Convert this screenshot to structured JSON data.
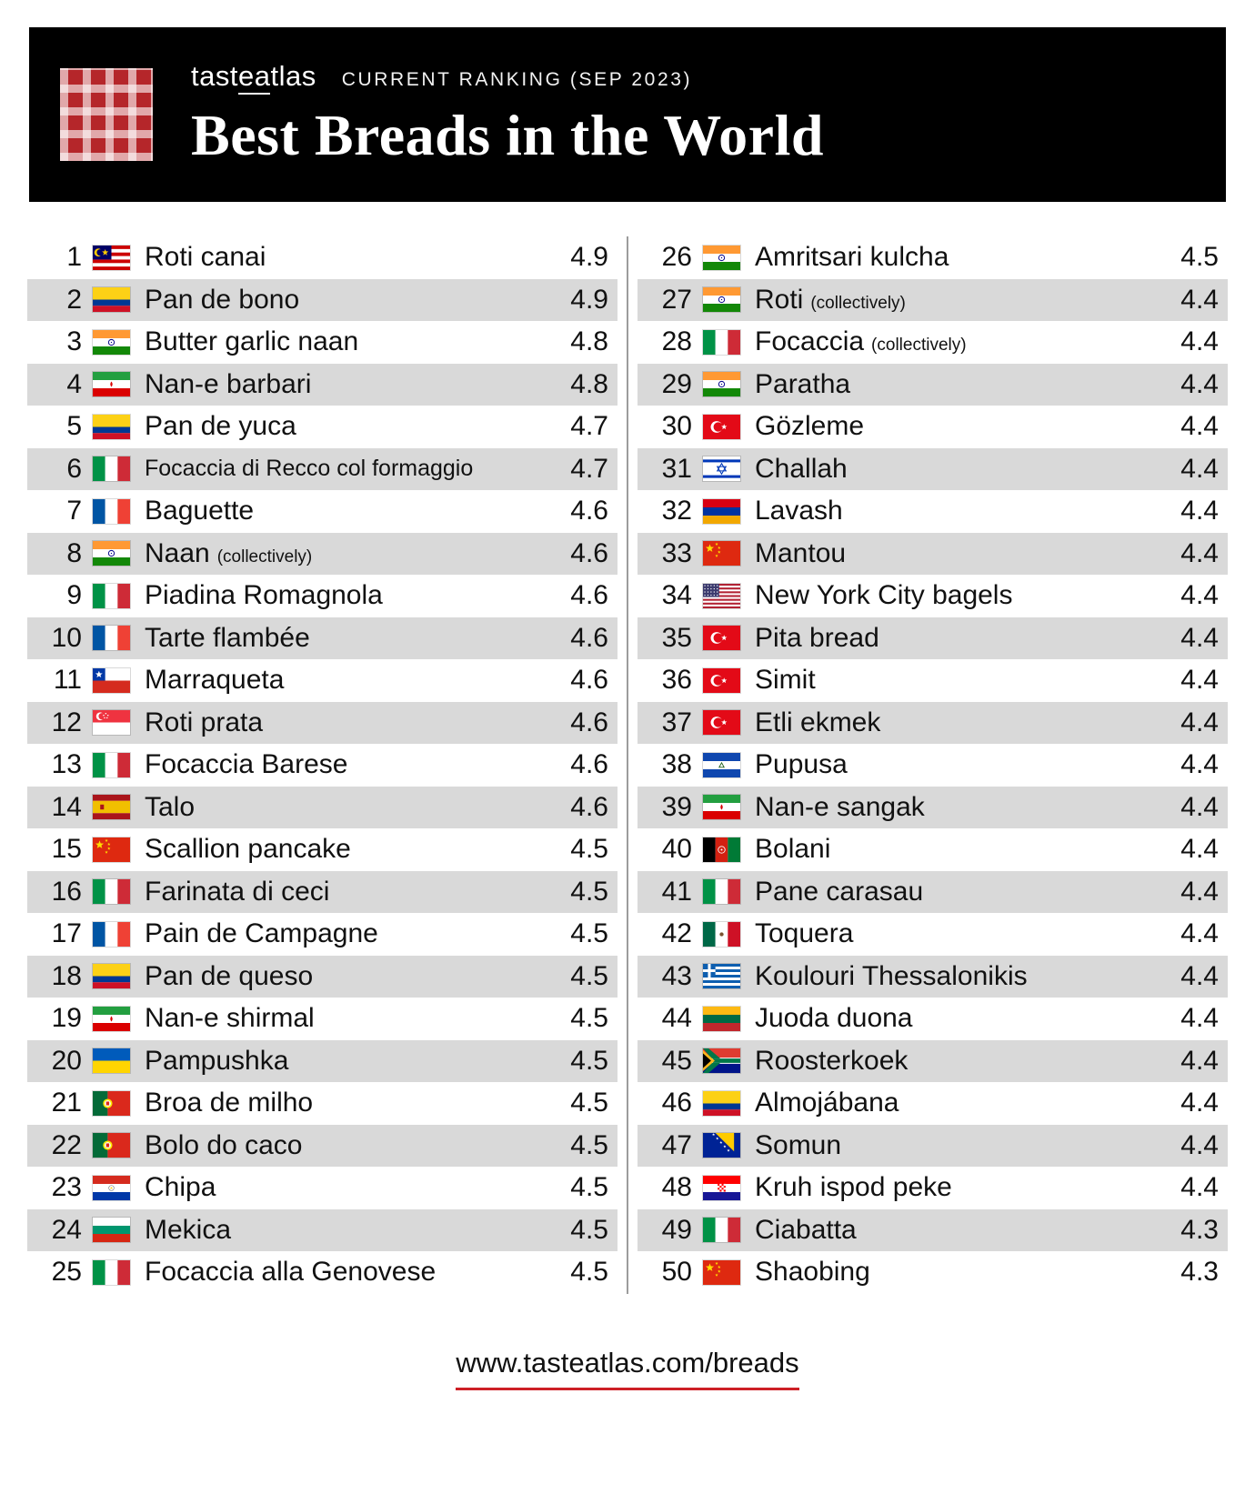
{
  "header": {
    "logo_pre": "tast",
    "logo_mid": "ea",
    "logo_post": "tlas",
    "ranking_label": "CURRENT RANKING (SEP 2023)",
    "title": "Best Breads in the World"
  },
  "footer": {
    "url": "www.tasteatlas.com/breads"
  },
  "colors": {
    "header_bg": "#000000",
    "row_alt_bg": "#d9d9d9",
    "accent_red": "#cd2026",
    "divider": "#9c9c9c"
  },
  "chart_data": {
    "type": "table",
    "title": "Best Breads in the World",
    "subtitle": "tasteatlas CURRENT RANKING (SEP 2023)",
    "columns": [
      "rank",
      "country",
      "bread",
      "rating"
    ],
    "rows": [
      {
        "rank": 1,
        "country": "Malaysia",
        "flag": "malaysia",
        "name": "Roti canai",
        "note": "",
        "rating": "4.9"
      },
      {
        "rank": 2,
        "country": "Colombia",
        "flag": "colombia",
        "name": "Pan de bono",
        "note": "",
        "rating": "4.9"
      },
      {
        "rank": 3,
        "country": "India",
        "flag": "india",
        "name": "Butter garlic naan",
        "note": "",
        "rating": "4.8"
      },
      {
        "rank": 4,
        "country": "Iran",
        "flag": "iran",
        "name": "Nan-e barbari",
        "note": "",
        "rating": "4.8"
      },
      {
        "rank": 5,
        "country": "Colombia",
        "flag": "colombia",
        "name": "Pan de yuca",
        "note": "",
        "rating": "4.7"
      },
      {
        "rank": 6,
        "country": "Italy",
        "flag": "italy",
        "name": "Focaccia di Recco col formaggio",
        "note": "",
        "rating": "4.7"
      },
      {
        "rank": 7,
        "country": "France",
        "flag": "france",
        "name": "Baguette",
        "note": "",
        "rating": "4.6"
      },
      {
        "rank": 8,
        "country": "India",
        "flag": "india",
        "name": "Naan",
        "note": "(collectively)",
        "rating": "4.6"
      },
      {
        "rank": 9,
        "country": "Italy",
        "flag": "italy",
        "name": "Piadina Romagnola",
        "note": "",
        "rating": "4.6"
      },
      {
        "rank": 10,
        "country": "France",
        "flag": "france",
        "name": "Tarte flambée",
        "note": "",
        "rating": "4.6"
      },
      {
        "rank": 11,
        "country": "Chile",
        "flag": "chile",
        "name": "Marraqueta",
        "note": "",
        "rating": "4.6"
      },
      {
        "rank": 12,
        "country": "Singapore",
        "flag": "singapore",
        "name": "Roti prata",
        "note": "",
        "rating": "4.6"
      },
      {
        "rank": 13,
        "country": "Italy",
        "flag": "italy",
        "name": "Focaccia Barese",
        "note": "",
        "rating": "4.6"
      },
      {
        "rank": 14,
        "country": "Spain",
        "flag": "spain",
        "name": "Talo",
        "note": "",
        "rating": "4.6"
      },
      {
        "rank": 15,
        "country": "China",
        "flag": "china",
        "name": "Scallion pancake",
        "note": "",
        "rating": "4.5"
      },
      {
        "rank": 16,
        "country": "Italy",
        "flag": "italy",
        "name": "Farinata di ceci",
        "note": "",
        "rating": "4.5"
      },
      {
        "rank": 17,
        "country": "France",
        "flag": "france",
        "name": "Pain de Campagne",
        "note": "",
        "rating": "4.5"
      },
      {
        "rank": 18,
        "country": "Colombia",
        "flag": "colombia",
        "name": "Pan de queso",
        "note": "",
        "rating": "4.5"
      },
      {
        "rank": 19,
        "country": "Iran",
        "flag": "iran",
        "name": "Nan-e shirmal",
        "note": "",
        "rating": "4.5"
      },
      {
        "rank": 20,
        "country": "Ukraine",
        "flag": "ukraine",
        "name": "Pampushka",
        "note": "",
        "rating": "4.5"
      },
      {
        "rank": 21,
        "country": "Portugal",
        "flag": "portugal",
        "name": "Broa de milho",
        "note": "",
        "rating": "4.5"
      },
      {
        "rank": 22,
        "country": "Portugal",
        "flag": "portugal",
        "name": "Bolo do caco",
        "note": "",
        "rating": "4.5"
      },
      {
        "rank": 23,
        "country": "Paraguay",
        "flag": "paraguay",
        "name": "Chipa",
        "note": "",
        "rating": "4.5"
      },
      {
        "rank": 24,
        "country": "Bulgaria",
        "flag": "bulgaria",
        "name": "Mekica",
        "note": "",
        "rating": "4.5"
      },
      {
        "rank": 25,
        "country": "Italy",
        "flag": "italy",
        "name": "Focaccia alla Genovese",
        "note": "",
        "rating": "4.5"
      },
      {
        "rank": 26,
        "country": "India",
        "flag": "india",
        "name": "Amritsari kulcha",
        "note": "",
        "rating": "4.5"
      },
      {
        "rank": 27,
        "country": "India",
        "flag": "india",
        "name": "Roti",
        "note": "(collectively)",
        "rating": "4.4"
      },
      {
        "rank": 28,
        "country": "Italy",
        "flag": "italy",
        "name": "Focaccia",
        "note": "(collectively)",
        "rating": "4.4"
      },
      {
        "rank": 29,
        "country": "India",
        "flag": "india",
        "name": "Paratha",
        "note": "",
        "rating": "4.4"
      },
      {
        "rank": 30,
        "country": "Turkey",
        "flag": "turkey",
        "name": "Gözleme",
        "note": "",
        "rating": "4.4"
      },
      {
        "rank": 31,
        "country": "Israel",
        "flag": "israel",
        "name": "Challah",
        "note": "",
        "rating": "4.4"
      },
      {
        "rank": 32,
        "country": "Armenia",
        "flag": "armenia",
        "name": "Lavash",
        "note": "",
        "rating": "4.4"
      },
      {
        "rank": 33,
        "country": "China",
        "flag": "china",
        "name": "Mantou",
        "note": "",
        "rating": "4.4"
      },
      {
        "rank": 34,
        "country": "United States",
        "flag": "usa",
        "name": "New York City bagels",
        "note": "",
        "rating": "4.4"
      },
      {
        "rank": 35,
        "country": "Turkey",
        "flag": "turkey",
        "name": "Pita bread",
        "note": "",
        "rating": "4.4"
      },
      {
        "rank": 36,
        "country": "Turkey",
        "flag": "turkey",
        "name": "Simit",
        "note": "",
        "rating": "4.4"
      },
      {
        "rank": 37,
        "country": "Turkey",
        "flag": "turkey",
        "name": "Etli ekmek",
        "note": "",
        "rating": "4.4"
      },
      {
        "rank": 38,
        "country": "El Salvador",
        "flag": "el_salvador",
        "name": "Pupusa",
        "note": "",
        "rating": "4.4"
      },
      {
        "rank": 39,
        "country": "Iran",
        "flag": "iran",
        "name": "Nan-e sangak",
        "note": "",
        "rating": "4.4"
      },
      {
        "rank": 40,
        "country": "Afghanistan",
        "flag": "afghanistan",
        "name": "Bolani",
        "note": "",
        "rating": "4.4"
      },
      {
        "rank": 41,
        "country": "Italy",
        "flag": "italy",
        "name": "Pane carasau",
        "note": "",
        "rating": "4.4"
      },
      {
        "rank": 42,
        "country": "Mexico",
        "flag": "mexico",
        "name": "Toquera",
        "note": "",
        "rating": "4.4"
      },
      {
        "rank": 43,
        "country": "Greece",
        "flag": "greece",
        "name": "Koulouri Thessalonikis",
        "note": "",
        "rating": "4.4"
      },
      {
        "rank": 44,
        "country": "Lithuania",
        "flag": "lithuania",
        "name": "Juoda duona",
        "note": "",
        "rating": "4.4"
      },
      {
        "rank": 45,
        "country": "South Africa",
        "flag": "south_africa",
        "name": "Roosterkoek",
        "note": "",
        "rating": "4.4"
      },
      {
        "rank": 46,
        "country": "Colombia",
        "flag": "colombia",
        "name": "Almojábana",
        "note": "",
        "rating": "4.4"
      },
      {
        "rank": 47,
        "country": "Bosnia and Herzegovina",
        "flag": "bosnia",
        "name": "Somun",
        "note": "",
        "rating": "4.4"
      },
      {
        "rank": 48,
        "country": "Croatia",
        "flag": "croatia",
        "name": "Kruh ispod peke",
        "note": "",
        "rating": "4.4"
      },
      {
        "rank": 49,
        "country": "Italy",
        "flag": "italy",
        "name": "Ciabatta",
        "note": "",
        "rating": "4.3"
      },
      {
        "rank": 50,
        "country": "China",
        "flag": "china",
        "name": "Shaobing",
        "note": "",
        "rating": "4.3"
      }
    ]
  }
}
